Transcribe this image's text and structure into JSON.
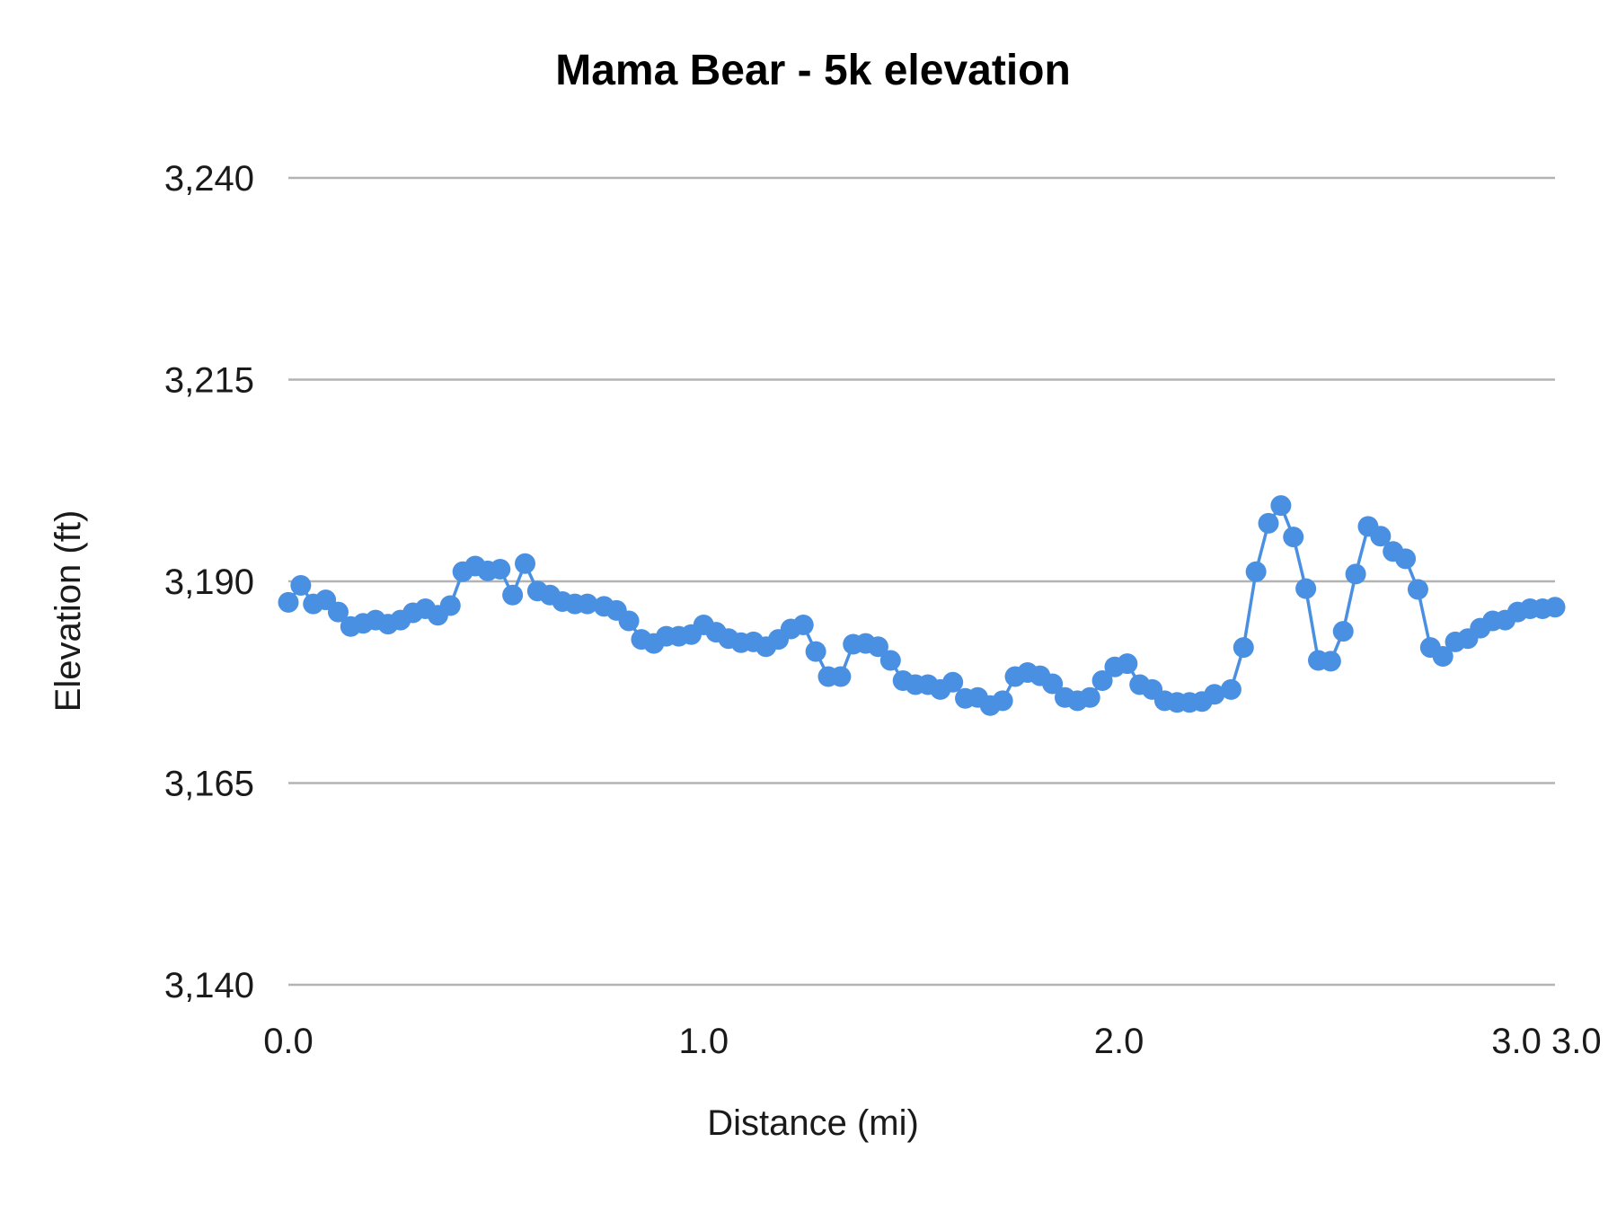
{
  "chart_data": {
    "type": "line",
    "title": "Mama Bear - 5k elevation",
    "xlabel": "Distance (mi)",
    "ylabel": "Elevation (ft)",
    "xlim": [
      0,
      3.05
    ],
    "ylim": [
      3140,
      3240
    ],
    "x_ticks": [
      {
        "value": 0,
        "label": "0.0"
      },
      {
        "value": 1,
        "label": "1.0"
      },
      {
        "value": 2,
        "label": "2.0"
      },
      {
        "value": 3,
        "label": "3.0"
      },
      {
        "value": 3.05,
        "label": "3.0"
      }
    ],
    "y_ticks": [
      {
        "value": 3140,
        "label": "3,140"
      },
      {
        "value": 3165,
        "label": "3,165"
      },
      {
        "value": 3190,
        "label": "3,190"
      },
      {
        "value": 3215,
        "label": "3,215"
      },
      {
        "value": 3240,
        "label": "3,240"
      }
    ],
    "grid": true,
    "legend": "none",
    "colors": {
      "series": "#4a90e2",
      "grid": "#b3b3b3"
    },
    "x": [
      0,
      0.03,
      0.06,
      0.09,
      0.12,
      0.15,
      0.18,
      0.21,
      0.24,
      0.27,
      0.3,
      0.33,
      0.36,
      0.39,
      0.42,
      0.45,
      0.48,
      0.51,
      0.54,
      0.57,
      0.6,
      0.63,
      0.66,
      0.69,
      0.72,
      0.76,
      0.79,
      0.82,
      0.85,
      0.88,
      0.91,
      0.94,
      0.97,
      1.0,
      1.03,
      1.06,
      1.09,
      1.12,
      1.15,
      1.18,
      1.21,
      1.24,
      1.27,
      1.3,
      1.33,
      1.36,
      1.39,
      1.42,
      1.45,
      1.48,
      1.51,
      1.54,
      1.57,
      1.6,
      1.63,
      1.66,
      1.69,
      1.72,
      1.75,
      1.78,
      1.81,
      1.84,
      1.87,
      1.9,
      1.93,
      1.96,
      1.99,
      2.02,
      2.05,
      2.08,
      2.11,
      2.14,
      2.17,
      2.2,
      2.23,
      2.27,
      2.3,
      2.33,
      2.36,
      2.39,
      2.42,
      2.45,
      2.48,
      2.51,
      2.54,
      2.57,
      2.6,
      2.63,
      2.66,
      2.69,
      2.72,
      2.75,
      2.78,
      2.81,
      2.84,
      2.87,
      2.9,
      2.93,
      2.96,
      2.99,
      3.02,
      3.05
    ],
    "series": [
      {
        "values": [
          3187.4,
          3189.5,
          3187.2,
          3187.7,
          3186.2,
          3184.4,
          3184.8,
          3185.2,
          3184.7,
          3185.2,
          3186.1,
          3186.6,
          3185.8,
          3187.0,
          3191.2,
          3191.9,
          3191.3,
          3191.5,
          3188.3,
          3192.2,
          3188.8,
          3188.3,
          3187.5,
          3187.2,
          3187.2,
          3186.9,
          3186.4,
          3185.1,
          3182.8,
          3182.3,
          3183.2,
          3183.2,
          3183.4,
          3184.6,
          3183.7,
          3182.9,
          3182.4,
          3182.5,
          3181.9,
          3182.8,
          3184.1,
          3184.6,
          3181.3,
          3178.2,
          3178.2,
          3182.2,
          3182.3,
          3181.9,
          3180.2,
          3177.7,
          3177.2,
          3177.2,
          3176.6,
          3177.5,
          3175.5,
          3175.6,
          3174.6,
          3175.2,
          3178.2,
          3178.7,
          3178.3,
          3177.3,
          3175.6,
          3175.2,
          3175.6,
          3177.7,
          3179.4,
          3179.8,
          3177.2,
          3176.6,
          3175.2,
          3175.0,
          3175.0,
          3175.1,
          3176.0,
          3176.6,
          3181.8,
          3191.2,
          3197.2,
          3199.4,
          3195.5,
          3189.1,
          3180.2,
          3180.1,
          3183.8,
          3190.9,
          3196.8,
          3195.6,
          3193.7,
          3192.8,
          3189.0,
          3181.8,
          3180.7,
          3182.5,
          3182.9,
          3184.2,
          3185.1,
          3185.2,
          3186.2,
          3186.6,
          3186.6,
          3186.8
        ]
      }
    ]
  }
}
